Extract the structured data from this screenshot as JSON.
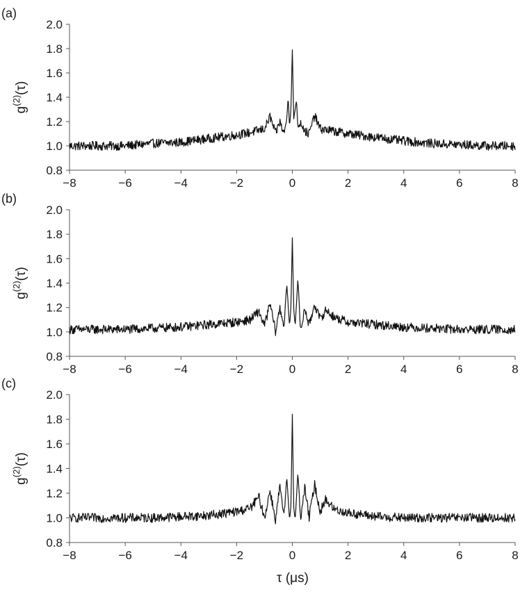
{
  "figure": {
    "x_title": "τ (μs)",
    "y_title_base": "g",
    "y_title_sup": "(2)",
    "y_title_arg": "(τ)"
  },
  "chart_data": [
    {
      "type": "line",
      "panel_label": "(a)",
      "xlim": [
        -8,
        8
      ],
      "ylim": [
        0.8,
        2.0
      ],
      "x_ticks": [
        -8,
        -6,
        -4,
        -2,
        0,
        2,
        4,
        6,
        8
      ],
      "y_ticks": [
        0.8,
        1.0,
        1.2,
        1.4,
        1.6,
        1.8,
        2.0
      ],
      "x_tick_labels": [
        "−8",
        "−6",
        "−4",
        "−2",
        "0",
        "2",
        "4",
        "6",
        "8"
      ],
      "y_tick_labels": [
        "0.8",
        "1.0",
        "1.2",
        "1.4",
        "1.6",
        "1.8",
        "2.0"
      ],
      "grid": false,
      "series": [
        {
          "x": [
            -8.0,
            -7.0,
            -6.0,
            -5.0,
            -4.0,
            -3.0,
            -2.0,
            -1.5,
            -1.0,
            -0.8,
            -0.6,
            -0.45,
            -0.3,
            -0.2,
            -0.15,
            -0.1,
            -0.05,
            0.0,
            0.05,
            0.1,
            0.15,
            0.2,
            0.3,
            0.45,
            0.6,
            0.8,
            1.0,
            1.5,
            2.0,
            3.0,
            4.0,
            5.0,
            6.0,
            7.0,
            8.0
          ],
          "y": [
            1.0,
            1.0,
            1.0,
            1.02,
            1.03,
            1.06,
            1.09,
            1.11,
            1.14,
            1.24,
            1.1,
            1.2,
            1.1,
            1.22,
            1.41,
            1.16,
            1.3,
            1.79,
            1.22,
            1.3,
            1.38,
            1.15,
            1.2,
            1.12,
            1.1,
            1.25,
            1.14,
            1.12,
            1.1,
            1.07,
            1.04,
            1.02,
            1.01,
            1.0,
            1.0
          ]
        }
      ]
    },
    {
      "type": "line",
      "panel_label": "(b)",
      "xlim": [
        -8,
        8
      ],
      "ylim": [
        0.8,
        2.0
      ],
      "x_ticks": [
        -8,
        -6,
        -4,
        -2,
        0,
        2,
        4,
        6,
        8
      ],
      "y_ticks": [
        0.8,
        1.0,
        1.2,
        1.4,
        1.6,
        1.8,
        2.0
      ],
      "x_tick_labels": [
        "−8",
        "−6",
        "−4",
        "−2",
        "0",
        "2",
        "4",
        "6",
        "8"
      ],
      "y_tick_labels": [
        "0.8",
        "1.0",
        "1.2",
        "1.4",
        "1.6",
        "1.8",
        "2.0"
      ],
      "grid": false,
      "series": [
        {
          "x": [
            -8.0,
            -7.0,
            -6.0,
            -5.0,
            -4.0,
            -3.0,
            -2.0,
            -1.5,
            -1.2,
            -1.0,
            -0.8,
            -0.6,
            -0.45,
            -0.3,
            -0.2,
            -0.1,
            -0.05,
            0.0,
            0.05,
            0.1,
            0.2,
            0.3,
            0.45,
            0.6,
            0.8,
            1.0,
            1.2,
            1.5,
            2.0,
            3.0,
            4.0,
            5.0,
            6.0,
            7.0,
            8.0
          ],
          "y": [
            1.02,
            1.02,
            1.02,
            1.03,
            1.04,
            1.06,
            1.08,
            1.1,
            1.17,
            1.05,
            1.23,
            1.0,
            1.2,
            1.05,
            1.39,
            1.05,
            1.2,
            1.77,
            1.2,
            1.05,
            1.43,
            1.0,
            1.2,
            1.05,
            1.23,
            1.1,
            1.18,
            1.12,
            1.08,
            1.06,
            1.04,
            1.03,
            1.02,
            1.02,
            1.02
          ]
        }
      ]
    },
    {
      "type": "line",
      "panel_label": "(c)",
      "xlim": [
        -8,
        8
      ],
      "ylim": [
        0.8,
        2.0
      ],
      "x_ticks": [
        -8,
        -6,
        -4,
        -2,
        0,
        2,
        4,
        6,
        8
      ],
      "y_ticks": [
        0.8,
        1.0,
        1.2,
        1.4,
        1.6,
        1.8,
        2.0
      ],
      "x_tick_labels": [
        "−8",
        "−6",
        "−4",
        "−2",
        "0",
        "2",
        "4",
        "6",
        "8"
      ],
      "y_tick_labels": [
        "0.8",
        "1.0",
        "1.2",
        "1.4",
        "1.6",
        "1.8",
        "2.0"
      ],
      "grid": false,
      "series": [
        {
          "x": [
            -8.0,
            -7.0,
            -6.0,
            -5.0,
            -4.0,
            -3.0,
            -2.0,
            -1.5,
            -1.2,
            -1.0,
            -0.8,
            -0.6,
            -0.45,
            -0.3,
            -0.2,
            -0.1,
            -0.05,
            0.0,
            0.05,
            0.1,
            0.2,
            0.3,
            0.45,
            0.6,
            0.8,
            1.0,
            1.2,
            1.5,
            2.0,
            3.0,
            4.0,
            5.0,
            6.0,
            7.0,
            8.0
          ],
          "y": [
            1.0,
            1.0,
            1.0,
            1.0,
            1.01,
            1.02,
            1.05,
            1.08,
            1.17,
            1.0,
            1.22,
            0.98,
            1.26,
            1.0,
            1.33,
            0.98,
            1.1,
            1.84,
            1.1,
            0.98,
            1.36,
            1.0,
            1.25,
            1.0,
            1.27,
            1.05,
            1.15,
            1.07,
            1.04,
            1.01,
            1.0,
            1.0,
            1.0,
            1.0,
            1.0
          ]
        }
      ]
    }
  ]
}
